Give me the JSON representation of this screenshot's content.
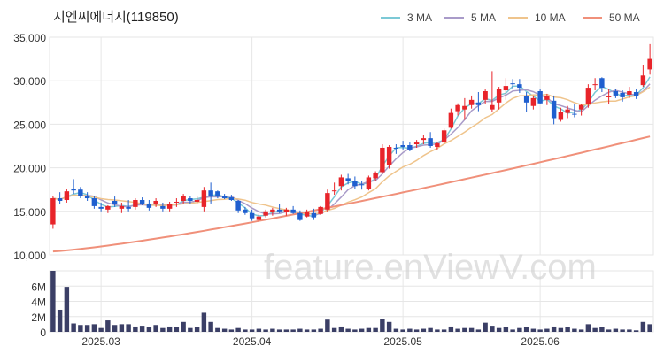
{
  "chart_data": {
    "title": "지엔씨에너지(119850)",
    "type": "candlestick",
    "watermark": "feature.enViewV.com",
    "legend": [
      {
        "label": "3 MA",
        "color": "#7cc9d6"
      },
      {
        "label": "5 MA",
        "color": "#a99bc9"
      },
      {
        "label": "10 MA",
        "color": "#efc48c"
      },
      {
        "label": "50 MA",
        "color": "#f0907a"
      }
    ],
    "price_axis": {
      "ylim": [
        10000,
        35000
      ],
      "ticks": [
        "10,000",
        "15,000",
        "20,000",
        "25,000",
        "30,000",
        "35,000"
      ],
      "tick_values": [
        10000,
        15000,
        20000,
        25000,
        30000,
        35000
      ]
    },
    "volume_axis": {
      "ylim": [
        0,
        8000000
      ],
      "ticks": [
        "0",
        "2M",
        "4M",
        "6M"
      ],
      "tick_values": [
        0,
        2000000,
        4000000,
        6000000
      ]
    },
    "x_ticks": [
      {
        "label": "2025.03",
        "index": 7
      },
      {
        "label": "2025.04",
        "index": 29
      },
      {
        "label": "2025.05",
        "index": 51
      },
      {
        "label": "2025.06",
        "index": 71
      }
    ],
    "colors": {
      "up": "#e8242a",
      "down": "#1f5fcf",
      "volume": "#3b3f66",
      "grid": "#e6e6e6"
    },
    "candles": [
      [
        13500,
        16800,
        13000,
        16500
      ],
      [
        16500,
        17200,
        15800,
        16200
      ],
      [
        16300,
        17600,
        16000,
        17300
      ],
      [
        17600,
        18700,
        17000,
        17400
      ],
      [
        17500,
        17800,
        16500,
        16800
      ],
      [
        16800,
        17200,
        16200,
        16500
      ],
      [
        16500,
        16800,
        15300,
        15600
      ],
      [
        15500,
        16000,
        15000,
        15300
      ],
      [
        15200,
        15700,
        14800,
        15600
      ],
      [
        16200,
        16700,
        15500,
        15800
      ],
      [
        15300,
        16000,
        14800,
        15600
      ],
      [
        15500,
        16300,
        15000,
        15300
      ],
      [
        15500,
        16500,
        15200,
        16300
      ],
      [
        16300,
        16600,
        15700,
        15800
      ],
      [
        15800,
        16300,
        15100,
        15400
      ],
      [
        15800,
        16500,
        15500,
        16200
      ],
      [
        15600,
        16000,
        15000,
        15300
      ],
      [
        15300,
        16100,
        15000,
        15800
      ],
      [
        16000,
        16500,
        15500,
        16100
      ],
      [
        16200,
        17000,
        15900,
        16800
      ],
      [
        16500,
        16800,
        15900,
        16200
      ],
      [
        16100,
        16800,
        15800,
        16300
      ],
      [
        15500,
        17800,
        15000,
        17400
      ],
      [
        17400,
        18300,
        15900,
        16700
      ],
      [
        17300,
        17400,
        16500,
        16700
      ],
      [
        16800,
        17000,
        16400,
        16500
      ],
      [
        16600,
        16900,
        16200,
        16300
      ],
      [
        16200,
        16300,
        14800,
        15100
      ],
      [
        15200,
        15500,
        14600,
        14800
      ],
      [
        14800,
        15200,
        13900,
        14200
      ],
      [
        14000,
        14700,
        13800,
        14400
      ],
      [
        14500,
        15200,
        14300,
        15000
      ],
      [
        14900,
        15400,
        14500,
        15200
      ],
      [
        15200,
        15800,
        14800,
        15000
      ],
      [
        14900,
        15400,
        14500,
        15200
      ],
      [
        15200,
        15600,
        14700,
        14800
      ],
      [
        14800,
        15100,
        13900,
        14000
      ],
      [
        14400,
        15200,
        14300,
        14900
      ],
      [
        14800,
        15300,
        14000,
        14300
      ],
      [
        14700,
        15600,
        14600,
        15500
      ],
      [
        15200,
        17500,
        14900,
        17100
      ],
      [
        17300,
        18300,
        16900,
        17400
      ],
      [
        17900,
        19200,
        17400,
        18900
      ],
      [
        18800,
        19300,
        18100,
        18500
      ],
      [
        18500,
        19000,
        17600,
        17900
      ],
      [
        18100,
        18500,
        17500,
        18000
      ],
      [
        17600,
        19100,
        17400,
        18900
      ],
      [
        18800,
        19600,
        18500,
        19400
      ],
      [
        19500,
        22700,
        19300,
        22300
      ],
      [
        20300,
        22600,
        19900,
        22400
      ],
      [
        22300,
        22700,
        21600,
        22200
      ],
      [
        22600,
        23100,
        22100,
        22400
      ],
      [
        22600,
        22900,
        21900,
        22100
      ],
      [
        22700,
        23200,
        22300,
        22900
      ],
      [
        23200,
        23800,
        22700,
        23400
      ],
      [
        23400,
        24100,
        22300,
        22500
      ],
      [
        22400,
        23000,
        22100,
        22800
      ],
      [
        22900,
        24500,
        22700,
        24300
      ],
      [
        24600,
        26800,
        24500,
        26300
      ],
      [
        26500,
        27400,
        26000,
        27200
      ],
      [
        26700,
        28000,
        25500,
        27100
      ],
      [
        27200,
        28300,
        26800,
        27800
      ],
      [
        27500,
        28700,
        26500,
        27200
      ],
      [
        27800,
        29000,
        27300,
        28800
      ],
      [
        26700,
        31100,
        26400,
        27200
      ],
      [
        27500,
        29300,
        26700,
        29100
      ],
      [
        28900,
        30300,
        27800,
        29400
      ],
      [
        29700,
        30200,
        29000,
        29600
      ],
      [
        29600,
        30200,
        28600,
        29200
      ],
      [
        28200,
        28700,
        26400,
        27500
      ],
      [
        27100,
        28300,
        26700,
        28000
      ],
      [
        28800,
        29000,
        27300,
        27400
      ],
      [
        27800,
        28500,
        27200,
        28200
      ],
      [
        27700,
        28300,
        25000,
        25700
      ],
      [
        25500,
        26900,
        25300,
        26400
      ],
      [
        26300,
        27100,
        25700,
        26700
      ],
      [
        26200,
        27300,
        25800,
        26100
      ],
      [
        26700,
        27300,
        26000,
        27200
      ],
      [
        27300,
        29600,
        26900,
        29200
      ],
      [
        29500,
        30300,
        28900,
        29600
      ],
      [
        30300,
        30400,
        28700,
        29200
      ],
      [
        28200,
        29000,
        27300,
        28200
      ],
      [
        28800,
        29100,
        28000,
        28300
      ],
      [
        28600,
        28900,
        27600,
        28100
      ],
      [
        28400,
        29300,
        28000,
        28800
      ],
      [
        28700,
        29100,
        27900,
        28200
      ],
      [
        29500,
        31800,
        29300,
        30600
      ],
      [
        31300,
        34200,
        30700,
        32500
      ]
    ],
    "volume": [
      8000000,
      2900000,
      5900000,
      1100000,
      900000,
      900000,
      1000000,
      500000,
      1500000,
      900000,
      1000000,
      1000000,
      700000,
      800000,
      600000,
      900000,
      500000,
      700000,
      600000,
      1300000,
      500000,
      600000,
      2500000,
      1300000,
      500000,
      400000,
      300000,
      500000,
      300000,
      300000,
      400000,
      300000,
      400000,
      300000,
      300000,
      300000,
      400000,
      300000,
      300000,
      400000,
      1600000,
      500000,
      700000,
      400000,
      300000,
      400000,
      500000,
      500000,
      1700000,
      1300000,
      400000,
      300000,
      400000,
      300000,
      400000,
      500000,
      300000,
      300000,
      700000,
      400000,
      500000,
      500000,
      300000,
      1200000,
      800000,
      500000,
      600000,
      300000,
      500000,
      600000,
      400000,
      300000,
      400000,
      700000,
      500000,
      600000,
      400000,
      300000,
      1000000,
      500000,
      600000,
      300000,
      400000,
      300000,
      300000,
      200000,
      1300000,
      1000000
    ]
  }
}
